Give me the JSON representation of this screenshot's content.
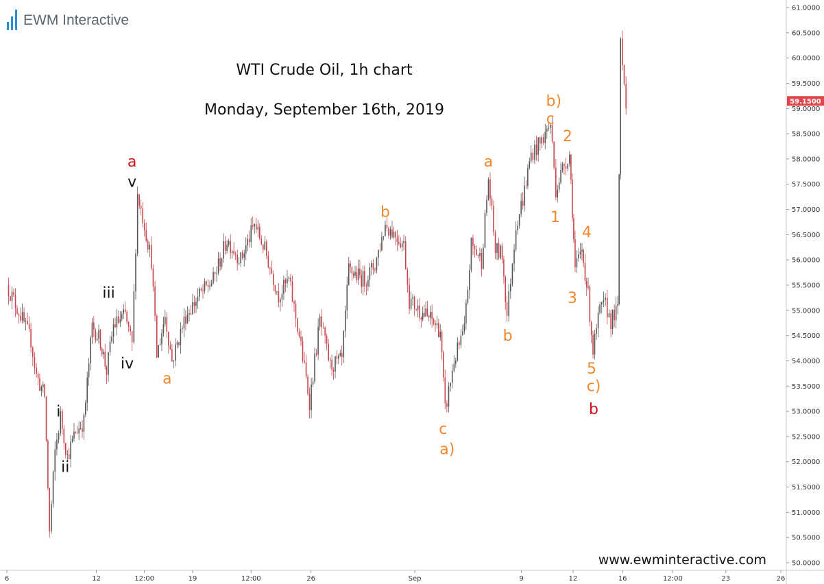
{
  "brand": {
    "logo_text": "EWM Interactive",
    "website": "www.ewminteractive.com"
  },
  "colors": {
    "orange": "#f0882e",
    "red": "#d0121a",
    "black": "#111111",
    "candle": "#555555",
    "candle_down": "#c8454a",
    "price_tag_bg": "#e0474c"
  },
  "chart_data": {
    "type": "candlestick",
    "title": "WTI Crude Oil, 1h chart",
    "subtitle": "Monday, September 16th, 2019",
    "ylim": [
      49.85,
      61.15
    ],
    "y_ticks": [
      "50.0000",
      "50.5000",
      "51.0000",
      "51.5000",
      "52.0000",
      "52.5000",
      "53.0000",
      "53.5000",
      "54.0000",
      "54.5000",
      "55.0000",
      "55.5000",
      "56.0000",
      "56.5000",
      "57.0000",
      "57.5000",
      "58.0000",
      "58.5000",
      "59.0000",
      "59.5000",
      "60.0000",
      "60.5000",
      "61.0000"
    ],
    "x_ticks": [
      {
        "label": "6",
        "pos": 0.0
      },
      {
        "label": "12",
        "pos": 0.13
      },
      {
        "label": "12:00",
        "pos": 0.2
      },
      {
        "label": "19",
        "pos": 0.27
      },
      {
        "label": "12:00",
        "pos": 0.355
      },
      {
        "label": "26",
        "pos": 0.442
      },
      {
        "label": "Sep",
        "pos": 0.593
      },
      {
        "label": "9",
        "pos": 0.748
      },
      {
        "label": "12",
        "pos": 0.823
      },
      {
        "label": "16",
        "pos": 0.895
      },
      {
        "label": "12:00",
        "pos": 0.968
      },
      {
        "label": "23",
        "pos": 1.045
      },
      {
        "label": "26",
        "pos": 1.125
      }
    ],
    "last_price": "59.1500",
    "last_price_value": 59.15,
    "path_points": [
      [
        0.0,
        55.5
      ],
      [
        0.02,
        54.9
      ],
      [
        0.035,
        54.4
      ],
      [
        0.043,
        53.7
      ],
      [
        0.055,
        53.3
      ],
      [
        0.062,
        50.6
      ],
      [
        0.07,
        52.2
      ],
      [
        0.078,
        52.9
      ],
      [
        0.088,
        52.1
      ],
      [
        0.1,
        52.6
      ],
      [
        0.112,
        52.8
      ],
      [
        0.124,
        54.7
      ],
      [
        0.136,
        54.4
      ],
      [
        0.145,
        53.8
      ],
      [
        0.155,
        54.7
      ],
      [
        0.172,
        54.9
      ],
      [
        0.182,
        54.3
      ],
      [
        0.19,
        57.3
      ],
      [
        0.2,
        56.7
      ],
      [
        0.21,
        56.0
      ],
      [
        0.218,
        54.1
      ],
      [
        0.23,
        54.9
      ],
      [
        0.24,
        54.0
      ],
      [
        0.26,
        54.9
      ],
      [
        0.28,
        55.3
      ],
      [
        0.3,
        55.6
      ],
      [
        0.32,
        56.4
      ],
      [
        0.34,
        56.0
      ],
      [
        0.36,
        56.7
      ],
      [
        0.375,
        56.2
      ],
      [
        0.395,
        55.3
      ],
      [
        0.41,
        55.6
      ],
      [
        0.425,
        54.5
      ],
      [
        0.44,
        53.2
      ],
      [
        0.455,
        54.8
      ],
      [
        0.47,
        53.9
      ],
      [
        0.487,
        54.0
      ],
      [
        0.497,
        55.8
      ],
      [
        0.52,
        55.6
      ],
      [
        0.535,
        55.9
      ],
      [
        0.55,
        56.7
      ],
      [
        0.565,
        56.5
      ],
      [
        0.577,
        56.3
      ],
      [
        0.585,
        55.2
      ],
      [
        0.6,
        55.0
      ],
      [
        0.618,
        54.8
      ],
      [
        0.63,
        54.6
      ],
      [
        0.637,
        53.0
      ],
      [
        0.65,
        54.0
      ],
      [
        0.665,
        54.6
      ],
      [
        0.675,
        56.3
      ],
      [
        0.69,
        56.0
      ],
      [
        0.7,
        57.6
      ],
      [
        0.71,
        56.2
      ],
      [
        0.72,
        56.1
      ],
      [
        0.727,
        54.9
      ],
      [
        0.74,
        56.7
      ],
      [
        0.75,
        57.2
      ],
      [
        0.762,
        58.1
      ],
      [
        0.775,
        58.3
      ],
      [
        0.79,
        58.7
      ],
      [
        0.798,
        57.4
      ],
      [
        0.81,
        57.9
      ],
      [
        0.818,
        58.1
      ],
      [
        0.822,
        57.0
      ],
      [
        0.826,
        55.8
      ],
      [
        0.836,
        56.2
      ],
      [
        0.845,
        55.3
      ],
      [
        0.852,
        54.2
      ],
      [
        0.862,
        55.0
      ],
      [
        0.87,
        55.1
      ],
      [
        0.878,
        54.8
      ],
      [
        0.888,
        55.0
      ],
      [
        0.892,
        60.4
      ],
      [
        0.9,
        59.15
      ]
    ],
    "labels": [
      {
        "text": "a",
        "x": 0.182,
        "y": 57.85,
        "color": "red"
      },
      {
        "text": "v",
        "x": 0.182,
        "y": 57.45,
        "color": "black"
      },
      {
        "text": "i",
        "x": 0.075,
        "y": 52.9,
        "color": "black"
      },
      {
        "text": "ii",
        "x": 0.085,
        "y": 51.8,
        "color": "black"
      },
      {
        "text": "iii",
        "x": 0.148,
        "y": 55.25,
        "color": "black"
      },
      {
        "text": "iv",
        "x": 0.175,
        "y": 53.85,
        "color": "black"
      },
      {
        "text": "a",
        "x": 0.233,
        "y": 53.55,
        "color": "orange"
      },
      {
        "text": "b",
        "x": 0.55,
        "y": 56.85,
        "color": "orange"
      },
      {
        "text": "c",
        "x": 0.634,
        "y": 52.55,
        "color": "orange"
      },
      {
        "text": "a)",
        "x": 0.64,
        "y": 52.15,
        "color": "orange"
      },
      {
        "text": "a",
        "x": 0.7,
        "y": 57.85,
        "color": "orange"
      },
      {
        "text": "b",
        "x": 0.728,
        "y": 54.4,
        "color": "orange"
      },
      {
        "text": "b)",
        "x": 0.795,
        "y": 59.05,
        "color": "orange"
      },
      {
        "text": "c",
        "x": 0.79,
        "y": 58.7,
        "color": "orange"
      },
      {
        "text": "2",
        "x": 0.815,
        "y": 58.35,
        "color": "orange"
      },
      {
        "text": "1",
        "x": 0.797,
        "y": 56.75,
        "color": "orange"
      },
      {
        "text": "4",
        "x": 0.843,
        "y": 56.45,
        "color": "orange"
      },
      {
        "text": "3",
        "x": 0.822,
        "y": 55.15,
        "color": "orange"
      },
      {
        "text": "5",
        "x": 0.85,
        "y": 53.75,
        "color": "orange"
      },
      {
        "text": "c)",
        "x": 0.853,
        "y": 53.4,
        "color": "orange"
      },
      {
        "text": "b",
        "x": 0.853,
        "y": 52.95,
        "color": "red"
      }
    ]
  }
}
